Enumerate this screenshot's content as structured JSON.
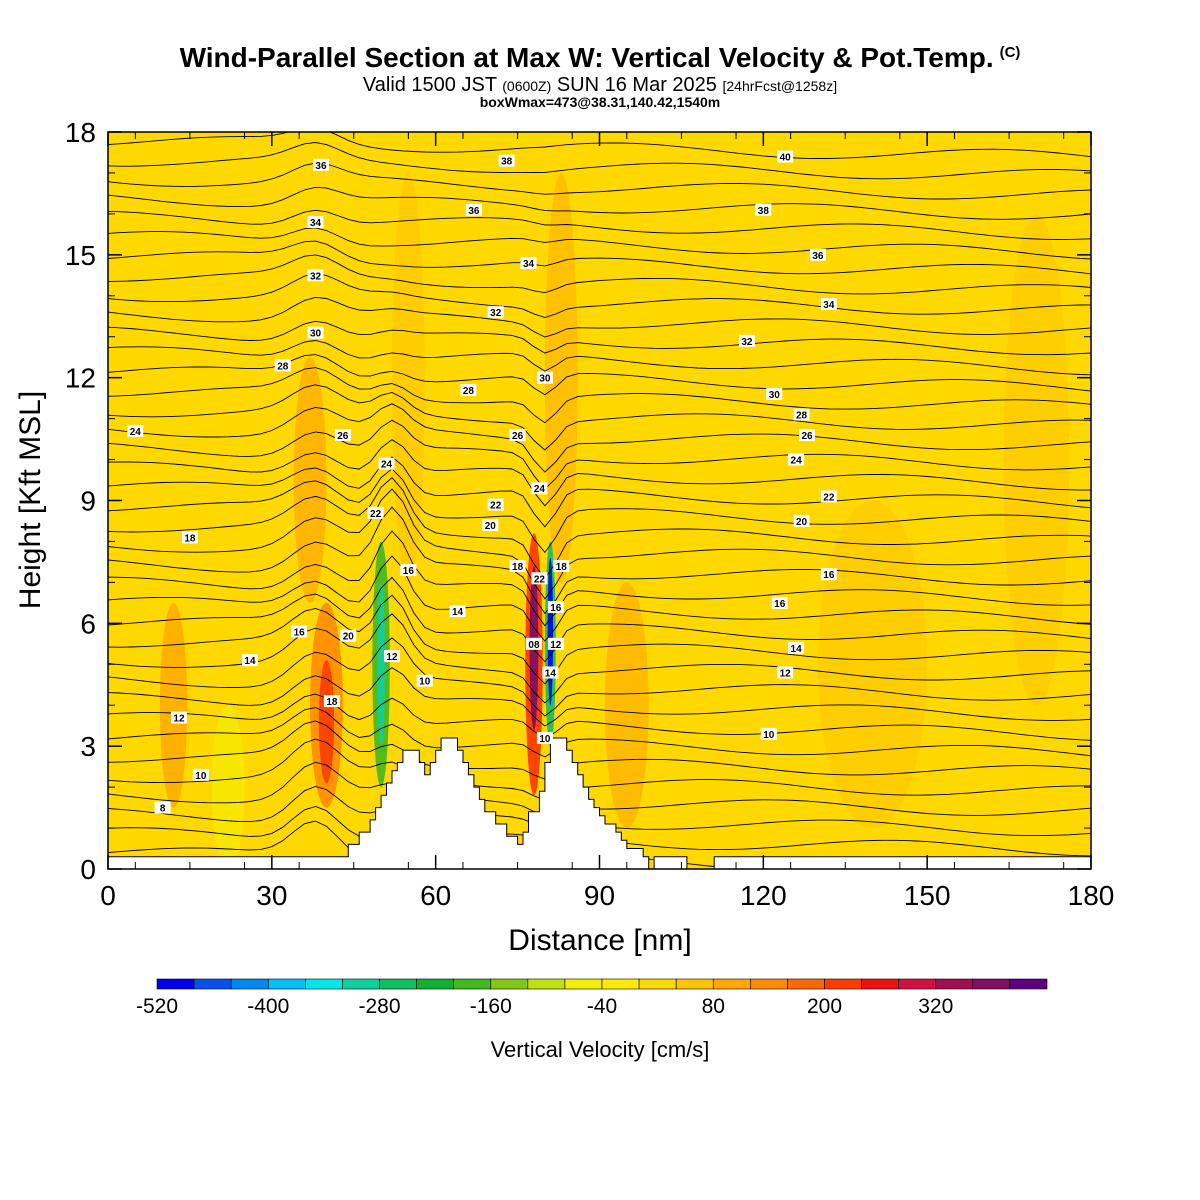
{
  "header": {
    "title": "Wind-Parallel Section at Max W: Vertical Velocity & Pot.Temp.",
    "copyright": "(C)",
    "valid_prefix": "Valid 1500 JST",
    "valid_utc": "(0600Z)",
    "valid_date": "SUN 16 Mar 2025",
    "forecast_info": "[24hrFcst@1258z]",
    "boxwmax": "boxWmax=473@38.31,140.42,1540m"
  },
  "chart_data": {
    "type": "heatmap",
    "xlabel": "Distance [nm]",
    "ylabel": "Height [Kft MSL]",
    "xlim": [
      0,
      180
    ],
    "ylim": [
      0,
      18
    ],
    "x_ticks": [
      0,
      30,
      60,
      90,
      120,
      150,
      180
    ],
    "y_ticks": [
      0,
      3,
      6,
      9,
      12,
      15,
      18
    ],
    "colorbar": {
      "label": "Vertical Velocity [cm/s]",
      "tick_labels": [
        "-520",
        "-400",
        "-280",
        "-160",
        "-40",
        "80",
        "200",
        "320"
      ],
      "levels": [
        -520,
        -480,
        -440,
        -400,
        -360,
        -320,
        -280,
        -240,
        -200,
        -160,
        -120,
        -80,
        -40,
        0,
        40,
        80,
        120,
        160,
        200,
        240,
        280,
        320,
        360,
        400
      ],
      "colors": [
        "#0000f0",
        "#0a50f0",
        "#0088f0",
        "#00c0f5",
        "#00e8e8",
        "#10d0a0",
        "#10c060",
        "#10b030",
        "#40b820",
        "#80c818",
        "#c0e010",
        "#f0f000",
        "#ffea00",
        "#ffd800",
        "#ffc400",
        "#ffa800",
        "#ff8c00",
        "#ff6800",
        "#ff3c00",
        "#f01010",
        "#d01040",
        "#a01050",
        "#801060",
        "#600080"
      ]
    },
    "terrain": {
      "x": [
        0,
        44,
        44,
        46,
        46,
        48,
        48,
        49,
        49,
        50,
        50,
        51,
        51,
        52,
        52,
        53,
        53,
        54,
        54,
        57,
        57,
        58,
        58,
        59,
        59,
        60,
        60,
        61,
        61,
        64,
        64,
        65,
        65,
        66,
        66,
        67,
        67,
        68,
        68,
        69,
        69,
        71,
        71,
        73,
        73,
        75,
        75,
        76,
        76,
        77,
        77,
        79,
        79,
        80,
        80,
        81,
        81,
        84,
        84,
        85,
        85,
        86,
        86,
        87,
        87,
        88,
        88,
        89,
        89,
        90,
        90,
        91,
        91,
        93,
        93,
        94,
        94,
        95,
        95,
        98,
        98,
        99,
        99,
        100,
        100,
        106,
        106,
        111,
        111,
        113,
        113,
        180
      ],
      "y": [
        0.3,
        0.3,
        0.6,
        0.6,
        0.9,
        0.9,
        1.2,
        1.2,
        1.5,
        1.5,
        1.8,
        1.8,
        2.1,
        2.1,
        2.4,
        2.4,
        2.6,
        2.6,
        2.9,
        2.9,
        2.6,
        2.6,
        2.3,
        2.3,
        2.6,
        2.6,
        2.9,
        2.9,
        3.2,
        3.2,
        2.9,
        2.9,
        2.6,
        2.6,
        2.3,
        2.3,
        2.0,
        2.0,
        1.7,
        1.7,
        1.4,
        1.4,
        1.1,
        1.1,
        0.8,
        0.8,
        0.6,
        0.6,
        0.9,
        0.9,
        1.4,
        1.4,
        1.9,
        1.9,
        2.6,
        2.6,
        3.2,
        3.2,
        2.9,
        2.9,
        2.6,
        2.6,
        2.3,
        2.3,
        2.0,
        2.0,
        1.7,
        1.7,
        1.5,
        1.5,
        1.3,
        1.3,
        1.1,
        1.1,
        0.9,
        0.9,
        0.7,
        0.7,
        0.5,
        0.5,
        0.3,
        0.3,
        0.0,
        0.0,
        0.3,
        0.3,
        0.0,
        0.0,
        0.3,
        0.3,
        0.3,
        0.3
      ]
    },
    "theta_contour_labels": [
      {
        "x": 10,
        "y": 1.5,
        "text": "8"
      },
      {
        "x": 17,
        "y": 2.3,
        "text": "10"
      },
      {
        "x": 13,
        "y": 3.7,
        "text": "12"
      },
      {
        "x": 26,
        "y": 5.1,
        "text": "14"
      },
      {
        "x": 35,
        "y": 5.8,
        "text": "16"
      },
      {
        "x": 41,
        "y": 4.1,
        "text": "18"
      },
      {
        "x": 44,
        "y": 5.7,
        "text": "20"
      },
      {
        "x": 49,
        "y": 8.7,
        "text": "22"
      },
      {
        "x": 51,
        "y": 9.9,
        "text": "24"
      },
      {
        "x": 43,
        "y": 10.6,
        "text": "26"
      },
      {
        "x": 32,
        "y": 12.3,
        "text": "28"
      },
      {
        "x": 38,
        "y": 13.1,
        "text": "30"
      },
      {
        "x": 38,
        "y": 14.5,
        "text": "32"
      },
      {
        "x": 38,
        "y": 15.8,
        "text": "34"
      },
      {
        "x": 39,
        "y": 17.2,
        "text": "36"
      },
      {
        "x": 5,
        "y": 10.7,
        "text": "24"
      },
      {
        "x": 15,
        "y": 8.1,
        "text": "18"
      },
      {
        "x": 55,
        "y": 7.3,
        "text": "16"
      },
      {
        "x": 52,
        "y": 5.2,
        "text": "12"
      },
      {
        "x": 58,
        "y": 4.6,
        "text": "10"
      },
      {
        "x": 64,
        "y": 6.3,
        "text": "14"
      },
      {
        "x": 70,
        "y": 8.4,
        "text": "20"
      },
      {
        "x": 71,
        "y": 8.9,
        "text": "22"
      },
      {
        "x": 75,
        "y": 10.6,
        "text": "26"
      },
      {
        "x": 66,
        "y": 11.7,
        "text": "28"
      },
      {
        "x": 71,
        "y": 13.6,
        "text": "32"
      },
      {
        "x": 77,
        "y": 14.8,
        "text": "34"
      },
      {
        "x": 67,
        "y": 16.1,
        "text": "36"
      },
      {
        "x": 73,
        "y": 17.3,
        "text": "38"
      },
      {
        "x": 75,
        "y": 7.4,
        "text": "18"
      },
      {
        "x": 79,
        "y": 7.1,
        "text": "22"
      },
      {
        "x": 79,
        "y": 9.3,
        "text": "24"
      },
      {
        "x": 80,
        "y": 12.0,
        "text": "30"
      },
      {
        "x": 78,
        "y": 5.5,
        "text": "08"
      },
      {
        "x": 80,
        "y": 3.2,
        "text": "10"
      },
      {
        "x": 81,
        "y": 4.8,
        "text": "14"
      },
      {
        "x": 82,
        "y": 5.5,
        "text": "12"
      },
      {
        "x": 82,
        "y": 6.4,
        "text": "16"
      },
      {
        "x": 83,
        "y": 7.4,
        "text": "18"
      },
      {
        "x": 121,
        "y": 3.3,
        "text": "10"
      },
      {
        "x": 124,
        "y": 4.8,
        "text": "12"
      },
      {
        "x": 126,
        "y": 5.4,
        "text": "14"
      },
      {
        "x": 123,
        "y": 6.5,
        "text": "16"
      },
      {
        "x": 132,
        "y": 7.2,
        "text": "16"
      },
      {
        "x": 127,
        "y": 8.5,
        "text": "20"
      },
      {
        "x": 132,
        "y": 9.1,
        "text": "22"
      },
      {
        "x": 126,
        "y": 10.0,
        "text": "24"
      },
      {
        "x": 128,
        "y": 10.6,
        "text": "26"
      },
      {
        "x": 127,
        "y": 11.1,
        "text": "28"
      },
      {
        "x": 122,
        "y": 11.6,
        "text": "30"
      },
      {
        "x": 117,
        "y": 12.9,
        "text": "32"
      },
      {
        "x": 132,
        "y": 13.8,
        "text": "34"
      },
      {
        "x": 130,
        "y": 15.0,
        "text": "36"
      },
      {
        "x": 120,
        "y": 16.1,
        "text": "38"
      },
      {
        "x": 124,
        "y": 17.4,
        "text": "40"
      }
    ]
  }
}
